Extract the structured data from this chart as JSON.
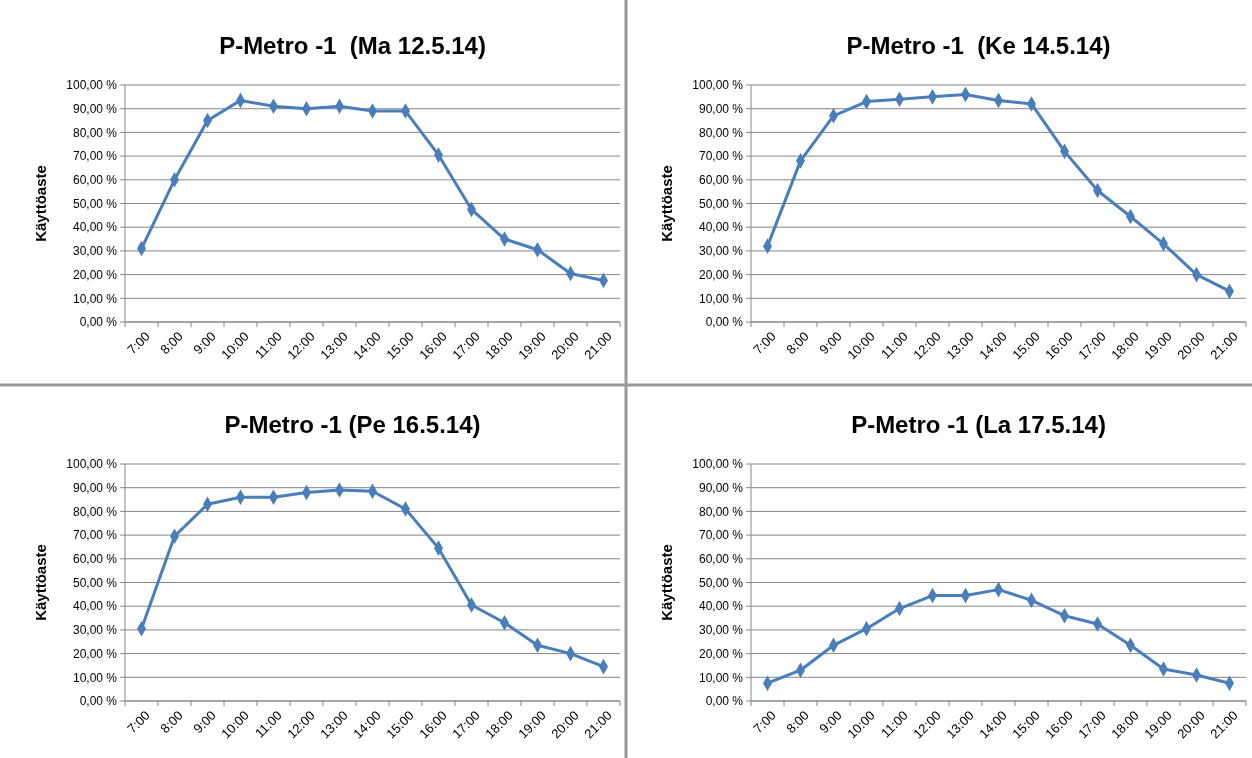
{
  "chart_data": [
    {
      "type": "line",
      "title": "P-Metro -1  (Ma 12.5.14)",
      "ylabel": "Käyttöaste",
      "categories": [
        "7:00",
        "8:00",
        "9:00",
        "10:00",
        "11:00",
        "12:00",
        "13:00",
        "14:00",
        "15:00",
        "16:00",
        "17:00",
        "18:00",
        "19:00",
        "20:00",
        "21:00"
      ],
      "series": [
        {
          "color": "#4a7ebb",
          "values": [
            31,
            60,
            85,
            93.5,
            91,
            90,
            91,
            89,
            89,
            70.5,
            47.5,
            35,
            30.5,
            20.5,
            17.5
          ]
        }
      ],
      "ylim": [
        0,
        100
      ],
      "yticks": [
        {
          "value": 0,
          "label": "0,00 %"
        },
        {
          "value": 10,
          "label": "10,00 %"
        },
        {
          "value": 20,
          "label": "20,00 %"
        },
        {
          "value": 30,
          "label": "30,00 %"
        },
        {
          "value": 40,
          "label": "40,00 %"
        },
        {
          "value": 50,
          "label": "50,00 %"
        },
        {
          "value": 60,
          "label": "60,00 %"
        },
        {
          "value": 70,
          "label": "70,00 %"
        },
        {
          "value": 80,
          "label": "80,00 %"
        },
        {
          "value": 90,
          "label": "90,00 %"
        },
        {
          "value": 100,
          "label": "100,00 %"
        }
      ],
      "grid": "y",
      "marker": "diamond"
    },
    {
      "type": "line",
      "title": "P-Metro -1  (Ke 14.5.14)",
      "ylabel": "Käyttöaste",
      "categories": [
        "7:00",
        "8:00",
        "9:00",
        "10:00",
        "11:00",
        "12:00",
        "13:00",
        "14:00",
        "15:00",
        "16:00",
        "17:00",
        "18:00",
        "19:00",
        "20:00",
        "21:00"
      ],
      "series": [
        {
          "color": "#4a7ebb",
          "values": [
            32,
            68,
            87,
            93,
            94,
            95,
            96,
            93.5,
            92,
            72,
            55.5,
            44.5,
            33,
            20,
            13
          ]
        }
      ],
      "ylim": [
        0,
        100
      ],
      "yticks": [
        {
          "value": 0,
          "label": "0,00 %"
        },
        {
          "value": 10,
          "label": "10,00 %"
        },
        {
          "value": 20,
          "label": "20,00 %"
        },
        {
          "value": 30,
          "label": "30,00 %"
        },
        {
          "value": 40,
          "label": "40,00 %"
        },
        {
          "value": 50,
          "label": "50,00 %"
        },
        {
          "value": 60,
          "label": "60,00 %"
        },
        {
          "value": 70,
          "label": "70,00 %"
        },
        {
          "value": 80,
          "label": "80,00 %"
        },
        {
          "value": 90,
          "label": "90,00 %"
        },
        {
          "value": 100,
          "label": "100,00 %"
        }
      ],
      "grid": "y",
      "marker": "diamond"
    },
    {
      "type": "line",
      "title": "P-Metro -1 (Pe 16.5.14)",
      "ylabel": "Käyttöaste",
      "categories": [
        "7:00",
        "8:00",
        "9:00",
        "10:00",
        "11:00",
        "12:00",
        "13:00",
        "14:00",
        "15:00",
        "16:00",
        "17:00",
        "18:00",
        "19:00",
        "20:00",
        "21:00"
      ],
      "series": [
        {
          "color": "#4a7ebb",
          "values": [
            30.5,
            69.5,
            83,
            86,
            86,
            88,
            89,
            88.5,
            81,
            64.5,
            40.5,
            33,
            23.5,
            20,
            14.5
          ]
        }
      ],
      "ylim": [
        0,
        100
      ],
      "yticks": [
        {
          "value": 0,
          "label": "0,00 %"
        },
        {
          "value": 10,
          "label": "10,00 %"
        },
        {
          "value": 20,
          "label": "20,00 %"
        },
        {
          "value": 30,
          "label": "30,00 %"
        },
        {
          "value": 40,
          "label": "40,00 %"
        },
        {
          "value": 50,
          "label": "50,00 %"
        },
        {
          "value": 60,
          "label": "60,00 %"
        },
        {
          "value": 70,
          "label": "70,00 %"
        },
        {
          "value": 80,
          "label": "80,00 %"
        },
        {
          "value": 90,
          "label": "90,00 %"
        },
        {
          "value": 100,
          "label": "100,00 %"
        }
      ],
      "grid": "y",
      "marker": "diamond"
    },
    {
      "type": "line",
      "title": "P-Metro -1 (La 17.5.14)",
      "ylabel": "Käyttöaste",
      "categories": [
        "7:00",
        "8:00",
        "9:00",
        "10:00",
        "11:00",
        "12:00",
        "13:00",
        "14:00",
        "15:00",
        "16:00",
        "17:00",
        "18:00",
        "19:00",
        "20:00",
        "21:00"
      ],
      "series": [
        {
          "color": "#4a7ebb",
          "values": [
            7.5,
            13,
            23.5,
            30.5,
            39,
            44.5,
            44.5,
            47,
            42.5,
            36,
            32.5,
            23.5,
            13.5,
            11,
            7.5
          ]
        }
      ],
      "ylim": [
        0,
        100
      ],
      "yticks": [
        {
          "value": 0,
          "label": "0,00 %"
        },
        {
          "value": 10,
          "label": "10,00 %"
        },
        {
          "value": 20,
          "label": "20,00 %"
        },
        {
          "value": 30,
          "label": "30,00 %"
        },
        {
          "value": 40,
          "label": "40,00 %"
        },
        {
          "value": 50,
          "label": "50,00 %"
        },
        {
          "value": 60,
          "label": "60,00 %"
        },
        {
          "value": 70,
          "label": "70,00 %"
        },
        {
          "value": 80,
          "label": "80,00 %"
        },
        {
          "value": 90,
          "label": "90,00 %"
        },
        {
          "value": 100,
          "label": "100,00 %"
        }
      ],
      "grid": "y",
      "marker": "diamond"
    }
  ]
}
